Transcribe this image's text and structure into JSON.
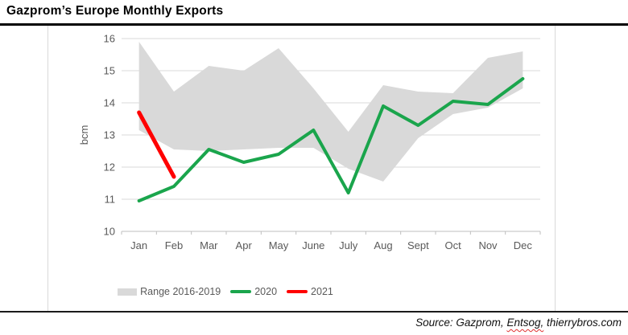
{
  "title": "Gazprom’s Europe Monthly Exports",
  "source": {
    "prefix": "Source: Gazprom, ",
    "flagged_word": "Entsog,",
    "suffix": " thierrybros.com"
  },
  "legend": [
    {
      "label": "Range 2016-2019",
      "swatch": "area",
      "color": "#d9d9d9"
    },
    {
      "label": "2020",
      "swatch": "line",
      "color": "#1aa54c"
    },
    {
      "label": "2021",
      "swatch": "line",
      "color": "#ff0000"
    }
  ],
  "chart_data": {
    "type": "line",
    "title": "Gazprom’s Europe Monthly Exports",
    "xlabel": "",
    "ylabel": "bcm",
    "ylim": [
      10,
      16
    ],
    "yticks": [
      10,
      11,
      12,
      13,
      14,
      15,
      16
    ],
    "grid": true,
    "legend_position": "bottom",
    "categories": [
      "Jan",
      "Feb",
      "Mar",
      "Apr",
      "May",
      "June",
      "July",
      "Aug",
      "Sept",
      "Oct",
      "Nov",
      "Dec"
    ],
    "series": [
      {
        "name": "Range 2016-2019",
        "type": "band",
        "color": "#d9d9d9",
        "upper": [
          15.9,
          14.35,
          15.15,
          15.0,
          15.7,
          14.45,
          13.1,
          14.55,
          14.35,
          14.3,
          15.4,
          15.6
        ],
        "lower": [
          13.15,
          12.55,
          12.5,
          12.55,
          12.6,
          12.6,
          11.95,
          11.55,
          12.9,
          13.65,
          13.85,
          14.45
        ]
      },
      {
        "name": "2020",
        "type": "line",
        "color": "#1aa54c",
        "values": [
          10.95,
          11.4,
          12.55,
          12.15,
          12.4,
          13.15,
          11.2,
          13.9,
          13.3,
          14.05,
          13.95,
          14.75
        ]
      },
      {
        "name": "2021",
        "type": "line",
        "color": "#ff0000",
        "values": [
          13.7,
          11.7,
          null,
          null,
          null,
          null,
          null,
          null,
          null,
          null,
          null,
          null
        ]
      }
    ],
    "axis_text_color": "#595959",
    "gridline_color": "#d9d9d9",
    "axis_line_color": "#bfbfbf"
  }
}
